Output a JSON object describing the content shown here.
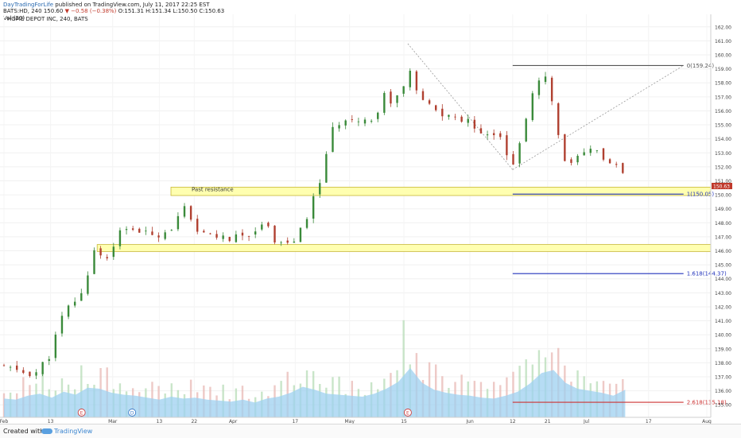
{
  "header": {
    "author": "DayTradingForLife",
    "published_text": "published on TradingView.com, July 11, 2017 22:25 EST",
    "symbol": "BATS:HD, 240",
    "last": "150.60",
    "change": "▼ −0.58 (−0.38%)",
    "ohlc": "O:151.31 H:151.34 L:150.50 C:150.63",
    "volume_label": "Vol (20)"
  },
  "chart_data": {
    "type": "candlestick",
    "title": "HOME DEPOT INC, 240, BATS",
    "ylim": [
      134.5,
      162.5
    ],
    "y_ticks": [
      135,
      136,
      137,
      138,
      139,
      140,
      141,
      142,
      143,
      144,
      145,
      146,
      147,
      148,
      149,
      150,
      151,
      152,
      153,
      154,
      155,
      156,
      157,
      158,
      159,
      160,
      161,
      162
    ],
    "x_tick_labels": [
      "Feb",
      "13",
      "Mar",
      "13",
      "22",
      "Apr",
      "17",
      "May",
      "15",
      "Jun",
      "12",
      "21",
      "Jul",
      "17",
      "Aug"
    ],
    "price_series": [
      [
        "2017-02-01",
        137.7
      ],
      [
        "2017-02-06",
        137.3
      ],
      [
        "2017-02-09",
        137.2
      ],
      [
        "2017-02-13",
        138.6
      ],
      [
        "2017-02-15",
        140.6
      ],
      [
        "2017-02-17",
        141.8
      ],
      [
        "2017-02-21",
        142.9
      ],
      [
        "2017-02-23",
        144.8
      ],
      [
        "2017-02-24",
        146.1
      ],
      [
        "2017-02-28",
        145.4
      ],
      [
        "2017-03-02",
        147.2
      ],
      [
        "2017-03-06",
        147.6
      ],
      [
        "2017-03-09",
        147.2
      ],
      [
        "2017-03-13",
        147.2
      ],
      [
        "2017-03-16",
        147.6
      ],
      [
        "2017-03-20",
        149.2
      ],
      [
        "2017-03-22",
        147.2
      ],
      [
        "2017-03-27",
        147.2
      ],
      [
        "2017-03-30",
        146.8
      ],
      [
        "2017-04-03",
        147.0
      ],
      [
        "2017-04-06",
        147.4
      ],
      [
        "2017-04-10",
        148.0
      ],
      [
        "2017-04-12",
        146.6
      ],
      [
        "2017-04-17",
        146.6
      ],
      [
        "2017-04-20",
        148.4
      ],
      [
        "2017-04-24",
        151.5
      ],
      [
        "2017-04-26",
        154.4
      ],
      [
        "2017-04-28",
        155.0
      ],
      [
        "2017-05-01",
        155.7
      ],
      [
        "2017-05-04",
        155.2
      ],
      [
        "2017-05-08",
        155.7
      ],
      [
        "2017-05-10",
        157.2
      ],
      [
        "2017-05-12",
        156.6
      ],
      [
        "2017-05-15",
        157.7
      ],
      [
        "2017-05-16",
        159.6
      ],
      [
        "2017-05-18",
        157.3
      ],
      [
        "2017-05-22",
        156.2
      ],
      [
        "2017-05-25",
        155.7
      ],
      [
        "2017-05-30",
        155.4
      ],
      [
        "2017-06-02",
        155.0
      ],
      [
        "2017-06-06",
        154.1
      ],
      [
        "2017-06-08",
        154.8
      ],
      [
        "2017-06-12",
        152.0
      ],
      [
        "2017-06-14",
        153.7
      ],
      [
        "2017-06-16",
        156.4
      ],
      [
        "2017-06-20",
        158.8
      ],
      [
        "2017-06-22",
        156.6
      ],
      [
        "2017-06-26",
        151.8
      ],
      [
        "2017-06-28",
        152.4
      ],
      [
        "2017-07-03",
        153.4
      ],
      [
        "2017-07-06",
        152.4
      ],
      [
        "2017-07-10",
        151.8
      ],
      [
        "2017-07-11",
        150.6
      ]
    ],
    "volume_series_percent_of_peak": [
      38,
      36,
      44,
      48,
      40,
      52,
      46,
      60,
      58,
      50,
      46,
      44,
      40,
      36,
      42,
      38,
      40,
      36,
      34,
      32,
      36,
      30,
      38,
      42,
      50,
      62,
      56,
      48,
      46,
      44,
      42,
      48,
      58,
      72,
      100,
      70,
      56,
      50,
      46,
      44,
      40,
      38,
      44,
      52,
      68,
      90,
      96,
      70,
      58,
      54,
      50,
      44,
      56
    ],
    "horizontal_levels": [
      {
        "label": "0(159.24)",
        "value": 159.24,
        "color": "#555555"
      },
      {
        "label": "1(150.05)",
        "value": 150.05,
        "color": "#2233bb"
      },
      {
        "label": "1.618(144.37)",
        "value": 144.37,
        "color": "#2233bb"
      },
      {
        "label": "2.618(135.18)",
        "value": 135.18,
        "color": "#cc3333"
      }
    ],
    "zones": [
      {
        "label": "Past resistance",
        "low": 149.95,
        "high": 150.55
      },
      {
        "label": "",
        "low": 145.95,
        "high": 146.45
      }
    ],
    "event_markers": [
      "E",
      "D",
      "E"
    ],
    "last_price_tag": "150.63",
    "colors": {
      "up": "#3a8a3a",
      "down": "#b04030",
      "volume_ma": "#9ed0f0",
      "zone_fill": "#ffffb0",
      "zone_border": "#c8b838"
    }
  },
  "footer": {
    "created_with": "Created with",
    "brand": "TradingView"
  }
}
